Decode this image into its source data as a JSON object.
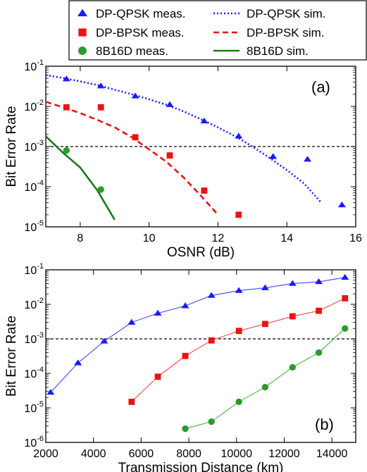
{
  "legend": {
    "entries": [
      {
        "label": "DP-QPSK meas.",
        "kind": "marker",
        "marker": "triangle",
        "color": "#1a1aff"
      },
      {
        "label": "DP-QPSK sim.",
        "kind": "line",
        "dash": "dotted",
        "color": "#1a1aff"
      },
      {
        "label": "DP-BPSK meas.",
        "kind": "marker",
        "marker": "square",
        "color": "#ee1111"
      },
      {
        "label": "DP-BPSK sim.",
        "kind": "line",
        "dash": "dashed",
        "color": "#ee1111"
      },
      {
        "label": "8B16D meas.",
        "kind": "marker",
        "marker": "circle",
        "color": "#2a9a2a"
      },
      {
        "label": "8B16D sim.",
        "kind": "line",
        "dash": "solid",
        "color": "#1a7a1a"
      }
    ]
  },
  "colors": {
    "qpsk": "#1a1aff",
    "bpsk": "#ee1111",
    "b16d": "#2a9a2a",
    "b16d_line": "#1a7a1a",
    "b16d_thin": "#55bb55",
    "qpsk_thin": "#5555ff",
    "bpsk_thin": "#ff5555",
    "threshold": "#000000"
  },
  "chart_data": [
    {
      "type": "scatter",
      "panel_label": "(a)",
      "xlabel": "OSNR (dB)",
      "ylabel": "Bit Error Rate",
      "xlim": [
        7,
        16
      ],
      "ylim": [
        1e-05,
        0.1
      ],
      "yscale": "log",
      "xticks": [
        8,
        10,
        12,
        14,
        16
      ],
      "yticks": [
        {
          "value": 1e-05,
          "base": "10",
          "exp": "-5"
        },
        {
          "value": 0.0001,
          "base": "10",
          "exp": "-4"
        },
        {
          "value": 0.001,
          "base": "10",
          "exp": "-3"
        },
        {
          "value": 0.01,
          "base": "10",
          "exp": "-2"
        },
        {
          "value": 0.1,
          "base": "10",
          "exp": "-1"
        }
      ],
      "threshold": 0.001,
      "series": [
        {
          "name": "DP-QPSK meas.",
          "style": "marker",
          "marker": "triangle",
          "color": "#1a1aff",
          "x": [
            7.6,
            8.6,
            9.6,
            10.6,
            11.6,
            12.6,
            13.6,
            14.6,
            15.6
          ],
          "y": [
            0.048,
            0.032,
            0.018,
            0.011,
            0.0043,
            0.0018,
            0.00056,
            0.00048,
            3.5e-05
          ]
        },
        {
          "name": "DP-BPSK meas.",
          "style": "marker",
          "marker": "square",
          "color": "#ee1111",
          "x": [
            7.6,
            8.6,
            9.6,
            10.6,
            11.6,
            12.6
          ],
          "y": [
            0.0095,
            0.0095,
            0.0017,
            0.0006,
            8e-05,
            2e-05
          ]
        },
        {
          "name": "8B16D meas.",
          "style": "marker",
          "marker": "circle",
          "color": "#2a9a2a",
          "x": [
            7.6,
            8.6
          ],
          "y": [
            0.0008,
            8.5e-05
          ]
        },
        {
          "name": "DP-QPSK sim.",
          "style": "line",
          "dash": "dotted",
          "color": "#1a1aff",
          "x": [
            7,
            7.5,
            8,
            8.5,
            9,
            9.5,
            10,
            10.5,
            11,
            11.5,
            12,
            12.5,
            13,
            13.5,
            14,
            14.5,
            15
          ],
          "y": [
            0.06,
            0.051,
            0.042,
            0.034,
            0.026,
            0.02,
            0.015,
            0.011,
            0.0075,
            0.0048,
            0.003,
            0.0018,
            0.001,
            0.00052,
            0.00026,
            0.00012,
            4e-05
          ]
        },
        {
          "name": "DP-BPSK sim.",
          "style": "line",
          "dash": "dashed",
          "color": "#ee1111",
          "x": [
            7,
            7.5,
            8,
            8.5,
            9,
            9.5,
            10,
            10.5,
            11,
            11.5,
            12
          ],
          "y": [
            0.013,
            0.0095,
            0.0068,
            0.0046,
            0.003,
            0.0017,
            0.00085,
            0.00042,
            0.00017,
            6e-05,
            2e-05
          ]
        },
        {
          "name": "8B16D sim.",
          "style": "line",
          "dash": "solid",
          "color": "#1a7a1a",
          "x": [
            7,
            7.5,
            8,
            8.5,
            9
          ],
          "y": [
            0.0018,
            0.0007,
            0.0003,
            8e-05,
            1.5e-05
          ]
        }
      ]
    },
    {
      "type": "line",
      "panel_label": "(b)",
      "xlabel": "Transmission Distance (km)",
      "ylabel": "Bit Error Rate",
      "xlim": [
        2000,
        15000
      ],
      "ylim": [
        1e-06,
        0.1
      ],
      "yscale": "log",
      "xticks": [
        2000,
        4000,
        6000,
        8000,
        10000,
        12000,
        14000
      ],
      "yticks": [
        {
          "value": 1e-06,
          "base": "10",
          "exp": "-6"
        },
        {
          "value": 1e-05,
          "base": "10",
          "exp": "-5"
        },
        {
          "value": 0.0001,
          "base": "10",
          "exp": "-4"
        },
        {
          "value": 0.001,
          "base": "10",
          "exp": "-3"
        },
        {
          "value": 0.01,
          "base": "10",
          "exp": "-2"
        },
        {
          "value": 0.1,
          "base": "10",
          "exp": "-1"
        }
      ],
      "threshold": 0.001,
      "series": [
        {
          "name": "DP-QPSK",
          "marker": "triangle",
          "color": "#1a1aff",
          "line_color": "#5555ff",
          "x": [
            2200,
            3350,
            4450,
            5600,
            6700,
            7850,
            8950,
            10100,
            11200,
            12350,
            13450,
            14550
          ],
          "y": [
            2.8e-05,
            0.0002,
            0.00085,
            0.003,
            0.0055,
            0.009,
            0.018,
            0.025,
            0.03,
            0.04,
            0.045,
            0.06
          ]
        },
        {
          "name": "DP-BPSK",
          "marker": "square",
          "color": "#ee1111",
          "line_color": "#ff5555",
          "x": [
            5600,
            6700,
            7850,
            8950,
            10100,
            11200,
            12350,
            13450,
            14550
          ],
          "y": [
            1.5e-05,
            8e-05,
            0.00032,
            0.0009,
            0.0017,
            0.0027,
            0.0045,
            0.0065,
            0.015
          ]
        },
        {
          "name": "8B16D",
          "marker": "circle",
          "color": "#2a9a2a",
          "line_color": "#55bb55",
          "x": [
            7850,
            8950,
            10100,
            11200,
            12350,
            13450,
            14550
          ],
          "y": [
            2.5e-06,
            4e-06,
            1.5e-05,
            4e-05,
            0.00015,
            0.0004,
            0.002
          ]
        }
      ]
    }
  ]
}
